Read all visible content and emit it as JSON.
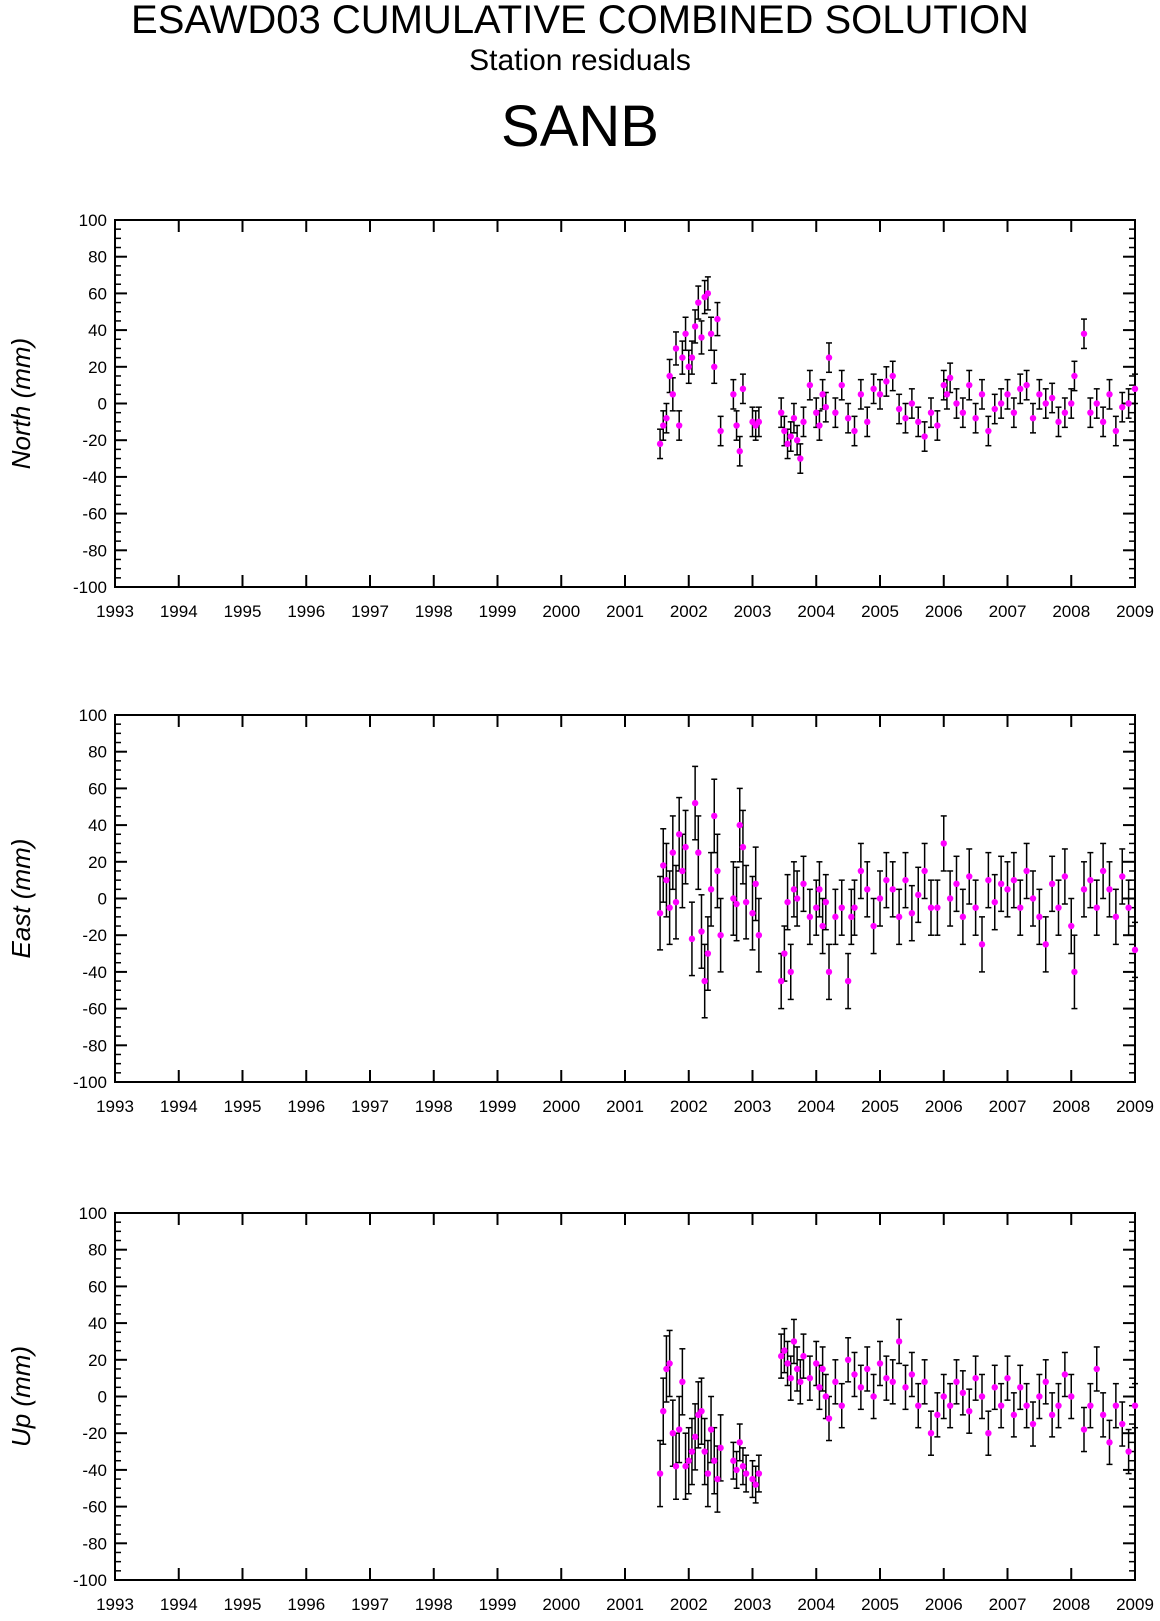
{
  "title": "ESAWD03 CUMULATIVE COMBINED SOLUTION",
  "subtitle": "Station residuals",
  "station": "SANB",
  "colors": {
    "point": "#ff00ff",
    "errorbar": "#000000",
    "axis": "#000000"
  },
  "chart_data": [
    {
      "type": "scatter",
      "ylabel": "North (mm)",
      "xlim": [
        1993,
        2009
      ],
      "ylim": [
        -100,
        100
      ],
      "x_ticks": [
        "1993",
        "1994",
        "1995",
        "1996",
        "1997",
        "1998",
        "1999",
        "2000",
        "2001",
        "2002",
        "2003",
        "2004",
        "2005",
        "2006",
        "2007",
        "2008",
        "2009"
      ],
      "y_ticks": [
        "100",
        "80",
        "60",
        "40",
        "20",
        "0",
        "-20",
        "-40",
        "-60",
        "-80",
        "-100"
      ],
      "grid": false,
      "series": [
        {
          "x": [
            2001.55,
            2001.6,
            2001.65,
            2001.7,
            2001.75,
            2001.8,
            2001.85,
            2001.9,
            2001.95,
            2002.0,
            2002.05,
            2002.1,
            2002.15,
            2002.2,
            2002.25,
            2002.3,
            2002.35,
            2002.4,
            2002.45,
            2002.5,
            2002.7,
            2002.75,
            2002.8,
            2002.85,
            2003.0,
            2003.05,
            2003.1,
            2003.45,
            2003.5,
            2003.55,
            2003.6,
            2003.65,
            2003.7,
            2003.75,
            2003.8,
            2003.9,
            2004.0,
            2004.05,
            2004.1,
            2004.15,
            2004.2,
            2004.3,
            2004.4,
            2004.5,
            2004.6,
            2004.7,
            2004.8,
            2004.9,
            2005.0,
            2005.1,
            2005.2,
            2005.3,
            2005.4,
            2005.5,
            2005.6,
            2005.7,
            2005.8,
            2005.9,
            2006.0,
            2006.05,
            2006.1,
            2006.2,
            2006.3,
            2006.4,
            2006.5,
            2006.6,
            2006.7,
            2006.8,
            2006.9,
            2007.0,
            2007.1,
            2007.2,
            2007.3,
            2007.4,
            2007.5,
            2007.6,
            2007.7,
            2007.8,
            2007.9,
            2008.0,
            2008.05,
            2008.2,
            2008.3,
            2008.4,
            2008.5,
            2008.6,
            2008.7,
            2008.8,
            2008.9,
            2009.0
          ],
          "y": [
            -22,
            -12,
            -8,
            15,
            5,
            30,
            -12,
            25,
            38,
            20,
            25,
            42,
            55,
            36,
            58,
            60,
            38,
            20,
            46,
            -15,
            5,
            -12,
            -26,
            8,
            -10,
            -12,
            -10,
            -5,
            -15,
            -22,
            -18,
            -8,
            -20,
            -30,
            -10,
            10,
            -5,
            -12,
            5,
            -2,
            25,
            -5,
            10,
            -8,
            -15,
            5,
            -10,
            8,
            5,
            12,
            15,
            -3,
            -8,
            0,
            -10,
            -18,
            -5,
            -12,
            10,
            5,
            14,
            0,
            -5,
            10,
            -8,
            5,
            -15,
            -3,
            0,
            5,
            -5,
            8,
            10,
            -8,
            5,
            0,
            3,
            -10,
            -5,
            0,
            15,
            38,
            -5,
            0,
            -10,
            5,
            -15,
            -2,
            0,
            8
          ],
          "err": [
            8,
            8,
            8,
            9,
            9,
            9,
            8,
            9,
            9,
            9,
            9,
            9,
            9,
            9,
            9,
            9,
            9,
            9,
            9,
            8,
            8,
            8,
            8,
            8,
            8,
            8,
            8,
            8,
            8,
            8,
            8,
            8,
            8,
            8,
            8,
            8,
            8,
            8,
            8,
            8,
            8,
            8,
            8,
            8,
            8,
            8,
            8,
            8,
            8,
            8,
            8,
            8,
            8,
            8,
            8,
            8,
            8,
            8,
            8,
            8,
            8,
            8,
            8,
            8,
            8,
            8,
            8,
            8,
            8,
            8,
            8,
            8,
            8,
            8,
            8,
            8,
            8,
            8,
            8,
            8,
            8,
            8,
            8,
            8,
            8,
            8,
            8,
            8,
            8,
            8
          ]
        }
      ]
    },
    {
      "type": "scatter",
      "ylabel": "East (mm)",
      "xlim": [
        1993,
        2009
      ],
      "ylim": [
        -100,
        100
      ],
      "x_ticks": [
        "1993",
        "1994",
        "1995",
        "1996",
        "1997",
        "1998",
        "1999",
        "2000",
        "2001",
        "2002",
        "2003",
        "2004",
        "2005",
        "2006",
        "2007",
        "2008",
        "2009"
      ],
      "y_ticks": [
        "100",
        "80",
        "60",
        "40",
        "20",
        "0",
        "-20",
        "-40",
        "-60",
        "-80",
        "-100"
      ],
      "grid": false,
      "series": [
        {
          "x": [
            2001.55,
            2001.6,
            2001.65,
            2001.7,
            2001.75,
            2001.8,
            2001.85,
            2001.9,
            2001.95,
            2002.05,
            2002.1,
            2002.15,
            2002.2,
            2002.25,
            2002.3,
            2002.35,
            2002.4,
            2002.45,
            2002.5,
            2002.7,
            2002.75,
            2002.8,
            2002.85,
            2002.9,
            2003.0,
            2003.05,
            2003.1,
            2003.45,
            2003.5,
            2003.55,
            2003.6,
            2003.65,
            2003.7,
            2003.8,
            2003.9,
            2004.0,
            2004.05,
            2004.1,
            2004.15,
            2004.2,
            2004.3,
            2004.4,
            2004.5,
            2004.55,
            2004.6,
            2004.7,
            2004.8,
            2004.9,
            2005.0,
            2005.1,
            2005.2,
            2005.3,
            2005.4,
            2005.5,
            2005.6,
            2005.7,
            2005.8,
            2005.9,
            2006.0,
            2006.1,
            2006.2,
            2006.3,
            2006.4,
            2006.5,
            2006.6,
            2006.7,
            2006.8,
            2006.9,
            2007.0,
            2007.1,
            2007.2,
            2007.3,
            2007.4,
            2007.5,
            2007.6,
            2007.7,
            2007.8,
            2007.9,
            2008.0,
            2008.05,
            2008.2,
            2008.3,
            2008.4,
            2008.5,
            2008.6,
            2008.7,
            2008.8,
            2008.9,
            2009.0
          ],
          "y": [
            -8,
            18,
            10,
            -5,
            25,
            -2,
            35,
            15,
            28,
            -22,
            52,
            25,
            -18,
            -45,
            -30,
            5,
            45,
            15,
            -20,
            0,
            -3,
            40,
            28,
            -2,
            -8,
            8,
            -20,
            -45,
            -30,
            -2,
            -40,
            5,
            0,
            8,
            -10,
            -5,
            5,
            -15,
            -2,
            -40,
            -10,
            -5,
            -45,
            -10,
            -5,
            15,
            5,
            -15,
            0,
            10,
            5,
            -10,
            10,
            -8,
            2,
            15,
            -5,
            -5,
            30,
            0,
            8,
            -10,
            12,
            -5,
            -25,
            10,
            -2,
            8,
            5,
            10,
            -5,
            15,
            0,
            -10,
            -25,
            8,
            -5,
            12,
            -15,
            -40,
            5,
            10,
            -5,
            15,
            5,
            -10,
            12,
            -5,
            -28
          ],
          "err": [
            20,
            20,
            20,
            20,
            20,
            20,
            20,
            20,
            20,
            20,
            20,
            20,
            20,
            20,
            20,
            20,
            20,
            20,
            20,
            20,
            20,
            20,
            20,
            20,
            20,
            20,
            20,
            15,
            15,
            15,
            15,
            15,
            15,
            15,
            15,
            15,
            15,
            15,
            15,
            15,
            15,
            15,
            15,
            15,
            15,
            15,
            15,
            15,
            15,
            15,
            15,
            15,
            15,
            15,
            15,
            15,
            15,
            15,
            15,
            15,
            15,
            15,
            15,
            15,
            15,
            15,
            15,
            15,
            15,
            15,
            15,
            15,
            15,
            15,
            15,
            15,
            15,
            15,
            15,
            20,
            15,
            15,
            15,
            15,
            15,
            15,
            15,
            15,
            15
          ]
        }
      ]
    },
    {
      "type": "scatter",
      "ylabel": "Up (mm)",
      "xlim": [
        1993,
        2009
      ],
      "ylim": [
        -100,
        100
      ],
      "x_ticks": [
        "1993",
        "1994",
        "1995",
        "1996",
        "1997",
        "1998",
        "1999",
        "2000",
        "2001",
        "2002",
        "2003",
        "2004",
        "2005",
        "2006",
        "2007",
        "2008",
        "2009"
      ],
      "y_ticks": [
        "100",
        "80",
        "60",
        "40",
        "20",
        "0",
        "-20",
        "-40",
        "-60",
        "-80",
        "-100"
      ],
      "grid": false,
      "series": [
        {
          "x": [
            2001.55,
            2001.6,
            2001.65,
            2001.7,
            2001.75,
            2001.8,
            2001.85,
            2001.9,
            2001.95,
            2002.0,
            2002.05,
            2002.1,
            2002.15,
            2002.2,
            2002.25,
            2002.3,
            2002.35,
            2002.4,
            2002.45,
            2002.5,
            2002.7,
            2002.75,
            2002.8,
            2002.85,
            2002.9,
            2003.0,
            2003.05,
            2003.1,
            2003.45,
            2003.5,
            2003.55,
            2003.6,
            2003.65,
            2003.7,
            2003.75,
            2003.8,
            2003.9,
            2004.0,
            2004.05,
            2004.1,
            2004.15,
            2004.2,
            2004.3,
            2004.4,
            2004.5,
            2004.6,
            2004.7,
            2004.8,
            2004.9,
            2005.0,
            2005.1,
            2005.2,
            2005.3,
            2005.4,
            2005.5,
            2005.6,
            2005.7,
            2005.8,
            2005.9,
            2006.0,
            2006.1,
            2006.2,
            2006.3,
            2006.4,
            2006.5,
            2006.6,
            2006.7,
            2006.8,
            2006.9,
            2007.0,
            2007.1,
            2007.2,
            2007.3,
            2007.4,
            2007.5,
            2007.6,
            2007.7,
            2007.8,
            2007.9,
            2008.0,
            2008.2,
            2008.3,
            2008.4,
            2008.5,
            2008.6,
            2008.7,
            2008.8,
            2008.9,
            2009.0
          ],
          "y": [
            -42,
            -8,
            15,
            18,
            -20,
            -38,
            -18,
            8,
            -38,
            -35,
            -30,
            -22,
            -10,
            -8,
            -30,
            -42,
            -18,
            -35,
            -45,
            -28,
            -35,
            -40,
            -25,
            -38,
            -42,
            -45,
            -48,
            -42,
            22,
            25,
            18,
            10,
            30,
            15,
            8,
            22,
            10,
            18,
            5,
            15,
            0,
            -12,
            8,
            -5,
            20,
            12,
            5,
            15,
            0,
            18,
            10,
            8,
            30,
            5,
            12,
            -5,
            8,
            -20,
            -10,
            0,
            -5,
            8,
            2,
            -8,
            10,
            0,
            -20,
            5,
            -5,
            10,
            -10,
            5,
            -5,
            -15,
            0,
            8,
            -10,
            -5,
            12,
            0,
            -18,
            -5,
            15,
            -10,
            -25,
            -5,
            -15,
            -30,
            -5
          ],
          "err": [
            18,
            18,
            18,
            18,
            18,
            18,
            18,
            18,
            18,
            18,
            18,
            18,
            18,
            18,
            18,
            18,
            18,
            18,
            18,
            18,
            10,
            10,
            10,
            10,
            10,
            10,
            10,
            10,
            12,
            12,
            12,
            12,
            12,
            12,
            12,
            12,
            12,
            12,
            12,
            12,
            12,
            12,
            12,
            12,
            12,
            12,
            12,
            12,
            12,
            12,
            12,
            12,
            12,
            12,
            12,
            12,
            12,
            12,
            12,
            12,
            12,
            12,
            12,
            12,
            12,
            12,
            12,
            12,
            12,
            12,
            12,
            12,
            12,
            12,
            12,
            12,
            12,
            12,
            12,
            12,
            12,
            12,
            12,
            12,
            12,
            12,
            12,
            12,
            12
          ]
        }
      ]
    }
  ]
}
